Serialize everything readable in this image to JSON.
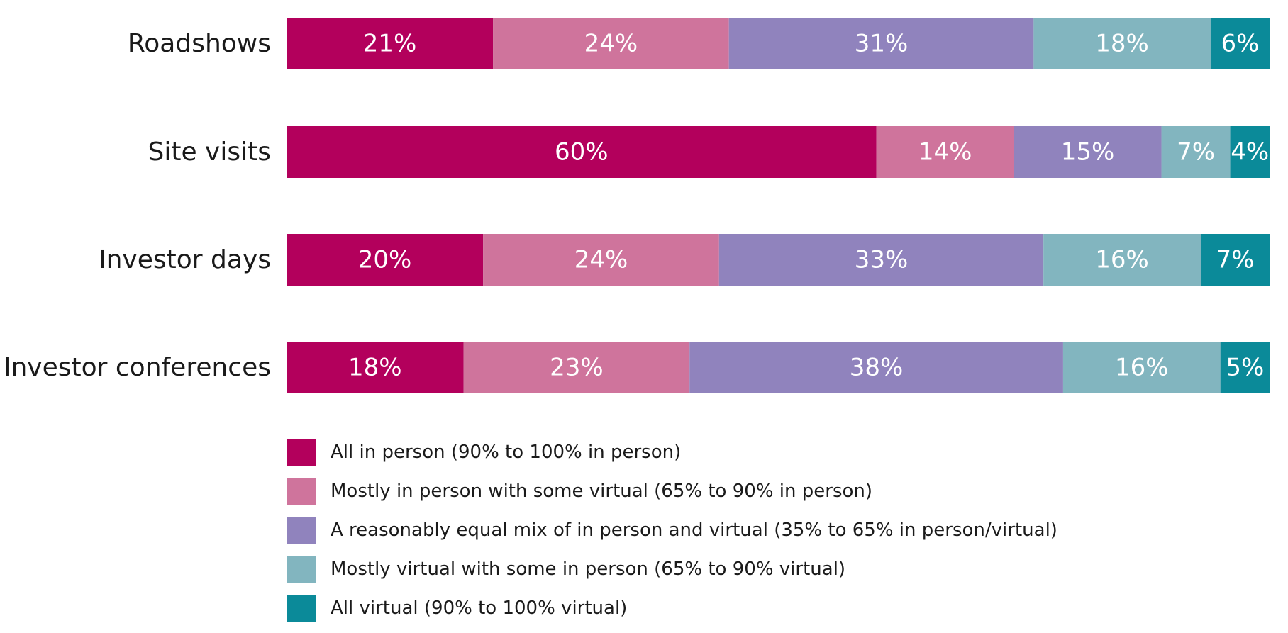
{
  "chart_data": {
    "type": "bar",
    "orientation": "horizontal",
    "stacked": true,
    "categories": [
      "Roadshows",
      "Site visits",
      "Investor days",
      "Investor conferences"
    ],
    "series": [
      {
        "name": "All in person (90% to 100% in person)",
        "values": [
          21,
          60,
          20,
          18
        ],
        "labels": [
          "21%",
          "60%",
          "20%",
          "18%"
        ],
        "color": "#b3005c"
      },
      {
        "name": "Mostly in person with some virtual (65% to 90% in person)",
        "values": [
          24,
          14,
          24,
          23
        ],
        "labels": [
          "24%",
          "14%",
          "24%",
          "23%"
        ],
        "color": "#cf749c"
      },
      {
        "name": "A reasonably equal mix of in person and virtual (35% to 65% in person/virtual)",
        "values": [
          31,
          15,
          33,
          38
        ],
        "labels": [
          "31%",
          "15%",
          "33%",
          "38%"
        ],
        "color": "#9083bd"
      },
      {
        "name": "Mostly virtual with some in person (65% to 90% virtual)",
        "values": [
          18,
          7,
          16,
          16
        ],
        "labels": [
          "18%",
          "7%",
          "16%",
          "16%"
        ],
        "color": "#82b5bf"
      },
      {
        "name": "All virtual (90% to 100% virtual)",
        "values": [
          6,
          4,
          7,
          5
        ],
        "labels": [
          "6%",
          "4%",
          "7%",
          "5%"
        ],
        "color": "#0b8a99"
      }
    ],
    "legend_position": "bottom",
    "grid": false
  }
}
